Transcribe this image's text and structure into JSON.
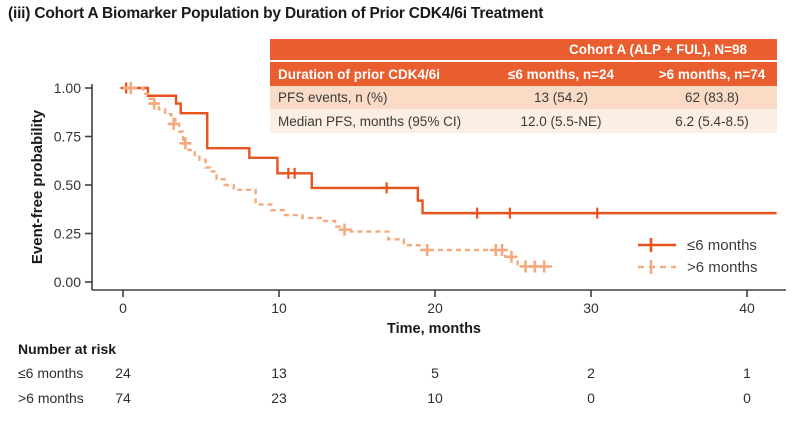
{
  "title": "(iii) Cohort A Biomarker Population by Duration of Prior CDK4/6i Treatment",
  "colors": {
    "accent_orange": "#E95D2E",
    "solid_series": "#E6531D",
    "dashed_series": "#F5A97E",
    "table_row1_bg": "#FADCC6",
    "table_row2_bg": "#FCEEE3",
    "axis": "#404040",
    "text_dark": "#1a1a1a"
  },
  "summary_table": {
    "header_span": "Cohort A (ALP + FUL), N=98",
    "col_headers": [
      "Duration of prior CDK4/6i",
      "≤6 months, n=24",
      ">6 months, n=74"
    ],
    "rows": [
      {
        "label": "PFS events, n (%)",
        "values": [
          "13 (54.2)",
          "62 (83.8)"
        ]
      },
      {
        "label": "Median PFS, months (95% CI)",
        "values": [
          "12.0 (5.5-NE)",
          "6.2 (5.4-8.5)"
        ]
      }
    ]
  },
  "chart_data": {
    "type": "line",
    "subtype": "kaplan-meier-step",
    "title": "Cohort A Biomarker Population by Duration of Prior CDK4/6i Treatment",
    "xlabel": "Time, months",
    "ylabel": "Event-free probability",
    "xlim": [
      0,
      42
    ],
    "ylim": [
      0,
      1
    ],
    "xticks": [
      0,
      10,
      20,
      30,
      40
    ],
    "ytick_labels": [
      "0.00",
      "0.25",
      "0.50",
      "0.75",
      "1.00"
    ],
    "grid": false,
    "legend_position": "inside-right",
    "series": [
      {
        "name": "≤6 months",
        "style": "solid",
        "n": 24,
        "steps": [
          [
            0,
            1.0
          ],
          [
            1.6,
            0.96
          ],
          [
            3.4,
            0.92
          ],
          [
            3.7,
            0.87
          ],
          [
            5.4,
            0.69
          ],
          [
            8.1,
            0.64
          ],
          [
            9.9,
            0.56
          ],
          [
            12.1,
            0.485
          ],
          [
            18.9,
            0.42
          ],
          [
            19.2,
            0.355
          ]
        ],
        "end_t": 41.9,
        "censors": [
          [
            0.2,
            1.0
          ],
          [
            10.6,
            0.56
          ],
          [
            11.0,
            0.56
          ],
          [
            16.9,
            0.485
          ],
          [
            22.7,
            0.355
          ],
          [
            24.8,
            0.355
          ],
          [
            30.4,
            0.355
          ]
        ]
      },
      {
        "name": ">6 months",
        "style": "dashed",
        "n": 74,
        "steps": [
          [
            0,
            1.0
          ],
          [
            1.3,
            0.97
          ],
          [
            1.6,
            0.945
          ],
          [
            1.9,
            0.92
          ],
          [
            2.3,
            0.89
          ],
          [
            2.7,
            0.865
          ],
          [
            3.1,
            0.84
          ],
          [
            3.35,
            0.815
          ],
          [
            3.6,
            0.775
          ],
          [
            3.85,
            0.715
          ],
          [
            4.2,
            0.68
          ],
          [
            4.6,
            0.655
          ],
          [
            4.9,
            0.63
          ],
          [
            5.3,
            0.59
          ],
          [
            5.6,
            0.57
          ],
          [
            6.0,
            0.53
          ],
          [
            6.5,
            0.5
          ],
          [
            7.1,
            0.475
          ],
          [
            8.5,
            0.4
          ],
          [
            9.5,
            0.37
          ],
          [
            10.3,
            0.345
          ],
          [
            11.5,
            0.33
          ],
          [
            12.8,
            0.315
          ],
          [
            13.6,
            0.285
          ],
          [
            13.9,
            0.27
          ],
          [
            14.6,
            0.26
          ],
          [
            17.0,
            0.22
          ],
          [
            18.0,
            0.19
          ],
          [
            19.0,
            0.165
          ],
          [
            24.5,
            0.13
          ],
          [
            25.3,
            0.08
          ]
        ],
        "end_t": 27.5,
        "censors": [
          [
            0.5,
            1.0
          ],
          [
            2.0,
            0.92
          ],
          [
            3.25,
            0.815
          ],
          [
            4.0,
            0.715
          ],
          [
            14.2,
            0.27
          ],
          [
            19.5,
            0.165
          ],
          [
            23.9,
            0.165
          ],
          [
            24.3,
            0.165
          ],
          [
            24.9,
            0.13
          ],
          [
            25.8,
            0.08
          ],
          [
            26.4,
            0.08
          ],
          [
            27.0,
            0.08
          ]
        ]
      }
    ]
  },
  "legend": {
    "items": [
      {
        "label": "≤6 months",
        "style": "solid"
      },
      {
        "label": ">6 months",
        "style": "dashed"
      }
    ]
  },
  "risk_table": {
    "title": "Number at risk",
    "time_points": [
      0,
      10,
      20,
      30,
      40
    ],
    "rows": [
      {
        "label": "≤6 months",
        "values": [
          "24",
          "13",
          "5",
          "2",
          "1"
        ]
      },
      {
        "label": ">6 months",
        "values": [
          "74",
          "23",
          "10",
          "0",
          "0"
        ]
      }
    ]
  }
}
